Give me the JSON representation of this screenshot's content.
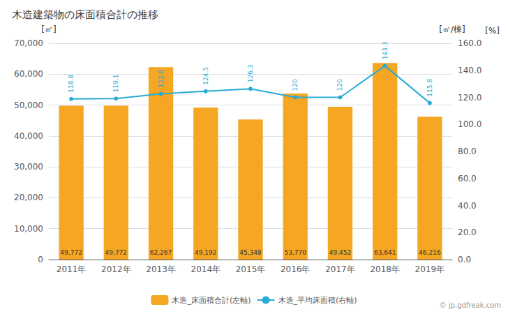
{
  "chart_data": {
    "type": "bar",
    "title": "木造建築物の床面積合計の推移",
    "categories": [
      "2011年",
      "2012年",
      "2013年",
      "2014年",
      "2015年",
      "2016年",
      "2017年",
      "2018年",
      "2019年"
    ],
    "series": [
      {
        "name": "木造_床面積合計(左軸)",
        "type": "bar",
        "color": "#F5A623",
        "values": [
          49772,
          49772,
          62267,
          49192,
          45348,
          53770,
          49452,
          63641,
          46216
        ],
        "value_labels": [
          "49,772",
          "49,772",
          "62,267",
          "49,192",
          "45,348",
          "53,770",
          "49,452",
          "63,641",
          "46,216"
        ]
      },
      {
        "name": "木造_平均床面積(右軸)",
        "type": "line",
        "color": "#29ABD4",
        "axis": "y2",
        "marker": "circle",
        "values": [
          118.8,
          119.1,
          122.6,
          124.5,
          126.3,
          120,
          120,
          143.3,
          115.8
        ]
      }
    ],
    "ylabel": "[㎡]",
    "y2label": "[㎡/棟]",
    "annotations": [
      "[%]",
      "© jp.gdfreak.com"
    ],
    "ylim": [
      0,
      70000
    ],
    "yticks": [
      0,
      {
        "value": 10000,
        "label": "10,000"
      },
      {
        "value": 20000,
        "label": "20,000"
      },
      {
        "value": 30000,
        "label": "30,000"
      },
      {
        "value": 40000,
        "label": "40,000"
      },
      {
        "value": 50000,
        "label": "50,000"
      },
      {
        "value": 60000,
        "label": "60,000"
      },
      {
        "value": 70000,
        "label": "70,000"
      }
    ],
    "y2lim": [
      0,
      160.0
    ],
    "y2ticks": [
      {
        "value": 0,
        "label": "0.0"
      },
      {
        "value": 20,
        "label": "20.0"
      },
      {
        "value": 40,
        "label": "40.0"
      },
      {
        "value": 60,
        "label": "60.0"
      },
      {
        "value": 80,
        "label": "80.0"
      },
      {
        "value": 100,
        "label": "100.0"
      },
      {
        "value": 120,
        "label": "120.0"
      },
      {
        "value": 140,
        "label": "140.0"
      },
      {
        "value": 160,
        "label": "160.0"
      }
    ],
    "grid": true,
    "legend": "bottom",
    "data_labels": true
  }
}
